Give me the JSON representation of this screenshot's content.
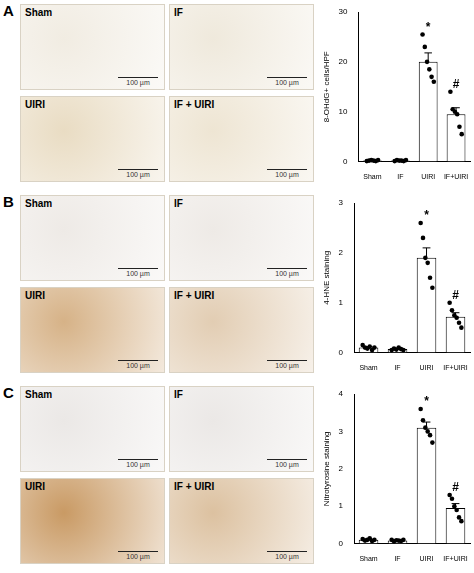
{
  "panels": [
    {
      "label": "A",
      "images": [
        "Sham",
        "IF",
        "UIRI",
        "IF + UIRI"
      ],
      "scale_bar": "100 µm"
    },
    {
      "label": "B",
      "images": [
        "Sham",
        "IF",
        "UIRI",
        "IF + UIRI"
      ],
      "scale_bar": "100 µm"
    },
    {
      "label": "C",
      "images": [
        "Sham",
        "IF",
        "UIRI",
        "IF + UIRI"
      ],
      "scale_bar": "100 µm"
    }
  ],
  "chart_data": [
    {
      "type": "bar",
      "y_label": "8-OHdG+ cells/HPF",
      "categories": [
        "Sham",
        "IF",
        "UIRI",
        "IF+UIRI"
      ],
      "values": [
        0.2,
        0.2,
        20,
        9.5
      ],
      "errors": [
        0.1,
        0.1,
        1.8,
        1.3
      ],
      "points": [
        [
          0.1,
          0.2,
          0.3,
          0.2,
          0.1,
          0.3
        ],
        [
          0.1,
          0.3,
          0.2,
          0.2,
          0.1,
          0.3
        ],
        [
          25.5,
          23,
          20,
          18.5,
          17,
          16
        ],
        [
          14,
          10.5,
          10,
          9.5,
          7,
          5.5
        ]
      ],
      "annotations": [
        null,
        null,
        "*",
        "#"
      ],
      "ylim": [
        0,
        30
      ],
      "yticks": [
        0,
        10,
        20,
        30
      ],
      "color": "#ffffff",
      "grid": false
    },
    {
      "type": "bar",
      "y_label": "4-HNE staining",
      "categories": [
        "Sham",
        "IF",
        "UIRI",
        "IF+UIRI"
      ],
      "values": [
        0.1,
        0.07,
        1.9,
        0.72
      ],
      "errors": [
        0.02,
        0.01,
        0.2,
        0.08
      ],
      "points": [
        [
          0.15,
          0.1,
          0.08,
          0.12,
          0.05,
          0.1
        ],
        [
          0.05,
          0.08,
          0.06,
          0.1,
          0.07,
          0.05
        ],
        [
          2.6,
          2.3,
          1.9,
          1.8,
          1.5,
          1.3
        ],
        [
          1.0,
          0.85,
          0.75,
          0.7,
          0.6,
          0.5
        ]
      ],
      "annotations": [
        null,
        null,
        "*",
        "#"
      ],
      "ylim": [
        0,
        3
      ],
      "yticks": [
        0,
        1,
        2,
        3
      ],
      "color": "#ffffff",
      "grid": false
    },
    {
      "type": "bar",
      "y_label": "Nitrotyrosine staining",
      "categories": [
        "Sham",
        "IF",
        "UIRI",
        "IF+UIRI"
      ],
      "values": [
        0.1,
        0.08,
        3.1,
        0.95
      ],
      "errors": [
        0.02,
        0.02,
        0.15,
        0.12
      ],
      "points": [
        [
          0.12,
          0.08,
          0.1,
          0.14,
          0.07,
          0.1
        ],
        [
          0.1,
          0.06,
          0.09,
          0.08,
          0.07,
          0.1
        ],
        [
          3.6,
          3.3,
          3.1,
          3.0,
          2.9,
          2.7
        ],
        [
          1.3,
          1.2,
          1.0,
          0.9,
          0.7,
          0.6
        ]
      ],
      "annotations": [
        null,
        null,
        "*",
        "#"
      ],
      "ylim": [
        0,
        4
      ],
      "yticks": [
        0,
        1,
        2,
        3,
        4
      ],
      "color": "#ffffff",
      "grid": false
    }
  ]
}
